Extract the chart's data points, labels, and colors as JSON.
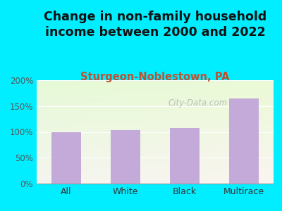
{
  "title": "Change in non-family household\nincome between 2000 and 2022",
  "subtitle": "Sturgeon-Noblestown, PA",
  "categories": [
    "All",
    "White",
    "Black",
    "Multirace"
  ],
  "values": [
    99,
    103,
    107,
    165
  ],
  "bar_color": "#c4aad8",
  "title_fontsize": 12.5,
  "subtitle_fontsize": 10.5,
  "title_color": "#111111",
  "subtitle_color": "#c05030",
  "background_outer": "#00eeff",
  "ylim": [
    0,
    200
  ],
  "yticks": [
    0,
    50,
    100,
    150,
    200
  ],
  "ytick_labels": [
    "0%",
    "50%",
    "100%",
    "150%",
    "200%"
  ],
  "watermark": "City-Data.com",
  "watermark_color": "#aaaaaa",
  "bg_color_topleft": "#f0f0ee",
  "bg_color_bottomright": "#e0eedc"
}
